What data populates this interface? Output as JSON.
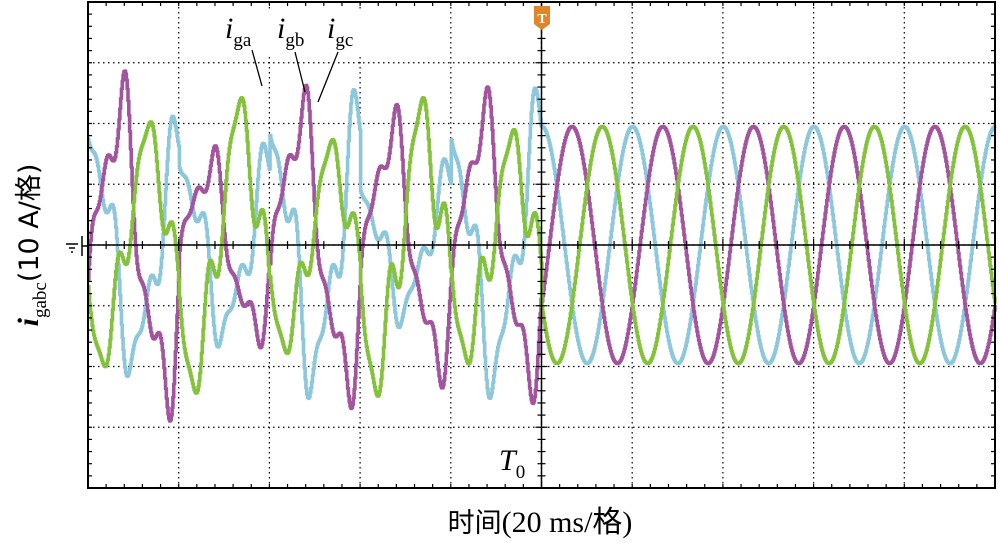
{
  "chart_data": {
    "type": "line",
    "grid": "dotted",
    "x_divisions": 10,
    "y_divisions": 8,
    "xlabel": {
      "prefix": "时间",
      "suffix": "(20 ms/格)"
    },
    "ylabel": {
      "main": "i",
      "sub": "gabc",
      "suffix": "(10 A/格)"
    },
    "xlim": [
      0,
      200
    ],
    "ylim": [
      -40,
      40
    ],
    "trigger": {
      "marker_text": "T",
      "label_main": "T",
      "label_sub": "0",
      "time": 100
    },
    "series_labels": [
      {
        "main": "i",
        "sub": "ga"
      },
      {
        "main": "i",
        "sub": "gb"
      },
      {
        "main": "i",
        "sub": "gc"
      }
    ],
    "series": [
      {
        "key": "ia",
        "color": "#8cc7dc",
        "before": {
          "freq_hz": 50,
          "phase_deg": 90,
          "amp_pk": 18,
          "peaks": [
            22,
            18,
            26,
            14,
            24,
            18,
            20,
            16,
            22,
            14
          ]
        },
        "after": {
          "freq_hz": 50,
          "phase_deg": 90,
          "amp_pk": 19.5
        }
      },
      {
        "key": "ib",
        "color": "#a3549e",
        "before": {
          "freq_hz": 50,
          "phase_deg": -30,
          "amp_pk": 18,
          "peaks": [
            28,
            16,
            24,
            20,
            22,
            14,
            20,
            18,
            22,
            16
          ]
        },
        "after": {
          "freq_hz": 50,
          "phase_deg": -30,
          "amp_pk": 19.5
        }
      },
      {
        "key": "ic",
        "color": "#84c23c",
        "before": {
          "freq_hz": 50,
          "phase_deg": 210,
          "amp_pk": 18,
          "peaks": [
            18,
            22,
            16,
            24,
            20,
            16,
            22,
            26,
            20,
            28
          ]
        },
        "after": {
          "freq_hz": 50,
          "phase_deg": 210,
          "amp_pk": 19.5
        }
      }
    ]
  }
}
